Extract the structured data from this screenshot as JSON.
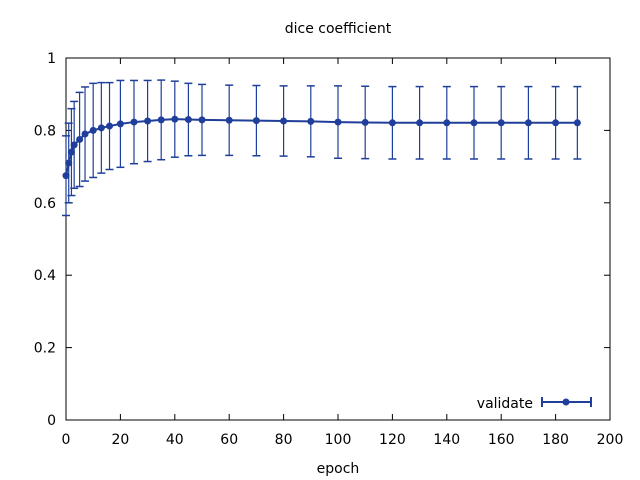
{
  "chart_data": {
    "type": "line",
    "title": "dice coefficient",
    "xlabel": "epoch",
    "ylabel": "",
    "xlim": [
      0,
      200
    ],
    "ylim": [
      0,
      1
    ],
    "x_ticks": [
      0,
      20,
      40,
      60,
      80,
      100,
      120,
      140,
      160,
      180,
      200
    ],
    "y_ticks": [
      0,
      0.2,
      0.4,
      0.6,
      0.8,
      1
    ],
    "x_tick_labels": [
      "0",
      "20",
      "40",
      "60",
      "80",
      "100",
      "120",
      "140",
      "160",
      "180",
      "200"
    ],
    "y_tick_labels": [
      "0",
      "0.2",
      "0.4",
      "0.6",
      "0.8",
      "1"
    ],
    "grid": false,
    "legend_position": "bottom-right",
    "series": [
      {
        "name": "validate",
        "color": "#1f3f9a",
        "error_bars": true,
        "x": [
          0,
          1,
          2,
          3,
          5,
          7,
          10,
          13,
          16,
          20,
          25,
          30,
          35,
          40,
          45,
          50,
          60,
          70,
          80,
          90,
          100,
          110,
          120,
          130,
          140,
          150,
          160,
          170,
          180,
          188
        ],
        "y": [
          0.675,
          0.71,
          0.74,
          0.76,
          0.775,
          0.79,
          0.8,
          0.807,
          0.812,
          0.818,
          0.823,
          0.826,
          0.829,
          0.831,
          0.83,
          0.829,
          0.828,
          0.827,
          0.826,
          0.825,
          0.823,
          0.822,
          0.821,
          0.821,
          0.821,
          0.821,
          0.821,
          0.821,
          0.821,
          0.821
        ],
        "y_err": [
          0.11,
          0.11,
          0.12,
          0.12,
          0.13,
          0.13,
          0.13,
          0.125,
          0.12,
          0.12,
          0.115,
          0.112,
          0.11,
          0.105,
          0.1,
          0.098,
          0.097,
          0.097,
          0.097,
          0.098,
          0.1,
          0.1,
          0.1,
          0.1,
          0.1,
          0.1,
          0.1,
          0.1,
          0.1,
          0.1
        ]
      }
    ]
  }
}
